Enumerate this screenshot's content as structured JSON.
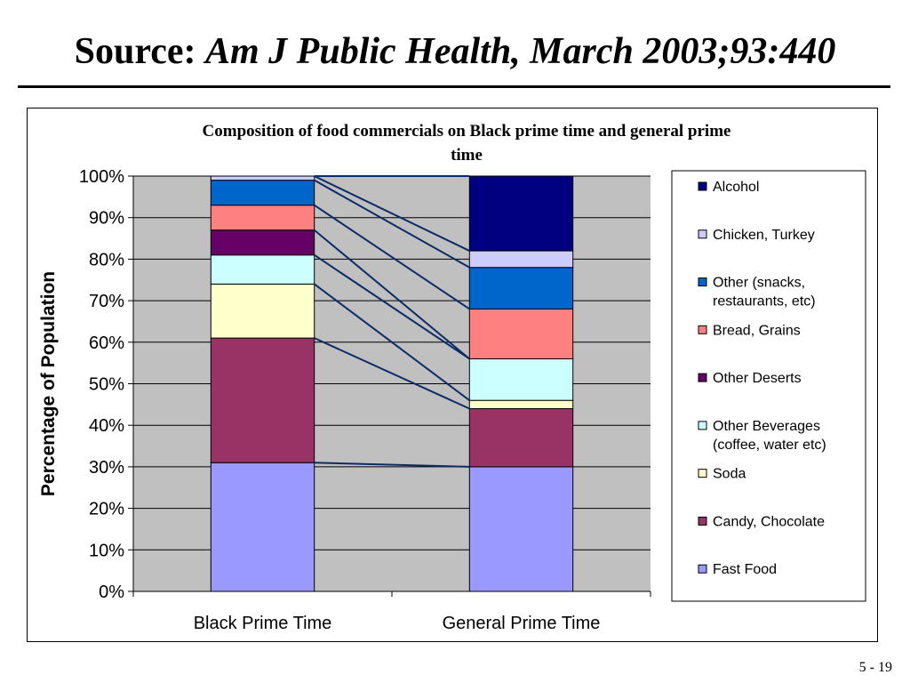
{
  "slide": {
    "title_prefix": "Source:",
    "title_citation": "Am J Public Health, March 2003;93:440",
    "page_number": "5 - 19"
  },
  "colors": {
    "plot_background": "#c0c0c0",
    "connector": "#0b2c66"
  },
  "chart_data": {
    "type": "bar",
    "stacked": true,
    "stack_mode": "percent",
    "title": "Composition of food  commercials on Black prime time and general prime time",
    "title_lines": [
      "Composition of food  commercials on Black prime time and general prime",
      "time"
    ],
    "xlabel": "",
    "ylabel": "Percentage of Population",
    "categories": [
      "Black Prime Time",
      "General Prime Time"
    ],
    "ylim": [
      0,
      100
    ],
    "yticks": [
      "0%",
      "10%",
      "20%",
      "30%",
      "40%",
      "50%",
      "60%",
      "70%",
      "80%",
      "90%",
      "100%"
    ],
    "grid": true,
    "legend_position": "right",
    "series_lines": true,
    "series": [
      {
        "name": "Fast Food",
        "color": "#9999ff",
        "values": [
          31,
          30
        ]
      },
      {
        "name": "Candy, Chocolate",
        "color": "#993366",
        "values": [
          30,
          14
        ]
      },
      {
        "name": "Soda",
        "color": "#ffffcc",
        "values": [
          13,
          2
        ]
      },
      {
        "name": "Other Beverages (coffee, water etc)",
        "legend_lines": [
          "Other Beverages",
          "(coffee, water etc)"
        ],
        "color": "#ccffff",
        "values": [
          7,
          10
        ]
      },
      {
        "name": "Other Deserts",
        "color": "#660066",
        "values": [
          6,
          0
        ]
      },
      {
        "name": "Bread, Grains",
        "color": "#ff8080",
        "values": [
          6,
          12
        ]
      },
      {
        "name": "Other (snacks, restaurants, etc)",
        "legend_lines": [
          "Other (snacks,",
          "restaurants, etc)"
        ],
        "color": "#0066cc",
        "values": [
          6,
          10
        ]
      },
      {
        "name": "Chicken, Turkey",
        "color": "#ccccff",
        "values": [
          1,
          4
        ]
      },
      {
        "name": "Alcohol",
        "color": "#000080",
        "values": [
          0,
          18
        ]
      }
    ]
  }
}
